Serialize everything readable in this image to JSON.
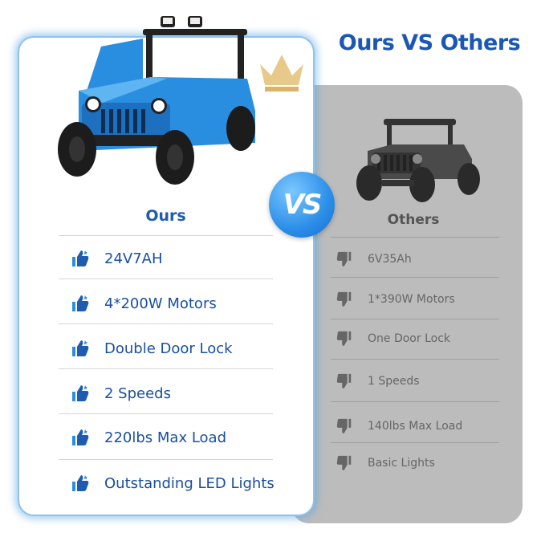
{
  "title": "Ours VS Others",
  "vs_badge": "VS",
  "ours": {
    "heading": "Ours",
    "icon": "thumbs-up-icon",
    "accent": "#1f5cb0",
    "items": [
      "24V7AH",
      "4*200W Motors",
      "Double Door Lock",
      "2 Speeds",
      "220lbs Max Load",
      "Outstanding LED Lights"
    ]
  },
  "others": {
    "heading": "Others",
    "icon": "thumbs-down-icon",
    "items": [
      "6V35Ah",
      "1*390W Motors",
      "One Door Lock",
      "1 Speeds",
      "140lbs Max Load",
      "Basic Lights"
    ]
  },
  "colors": {
    "brand_blue": "#1b57b3",
    "panel_gray": "#bcbcbc",
    "car_blue": "#2a8ee0"
  }
}
